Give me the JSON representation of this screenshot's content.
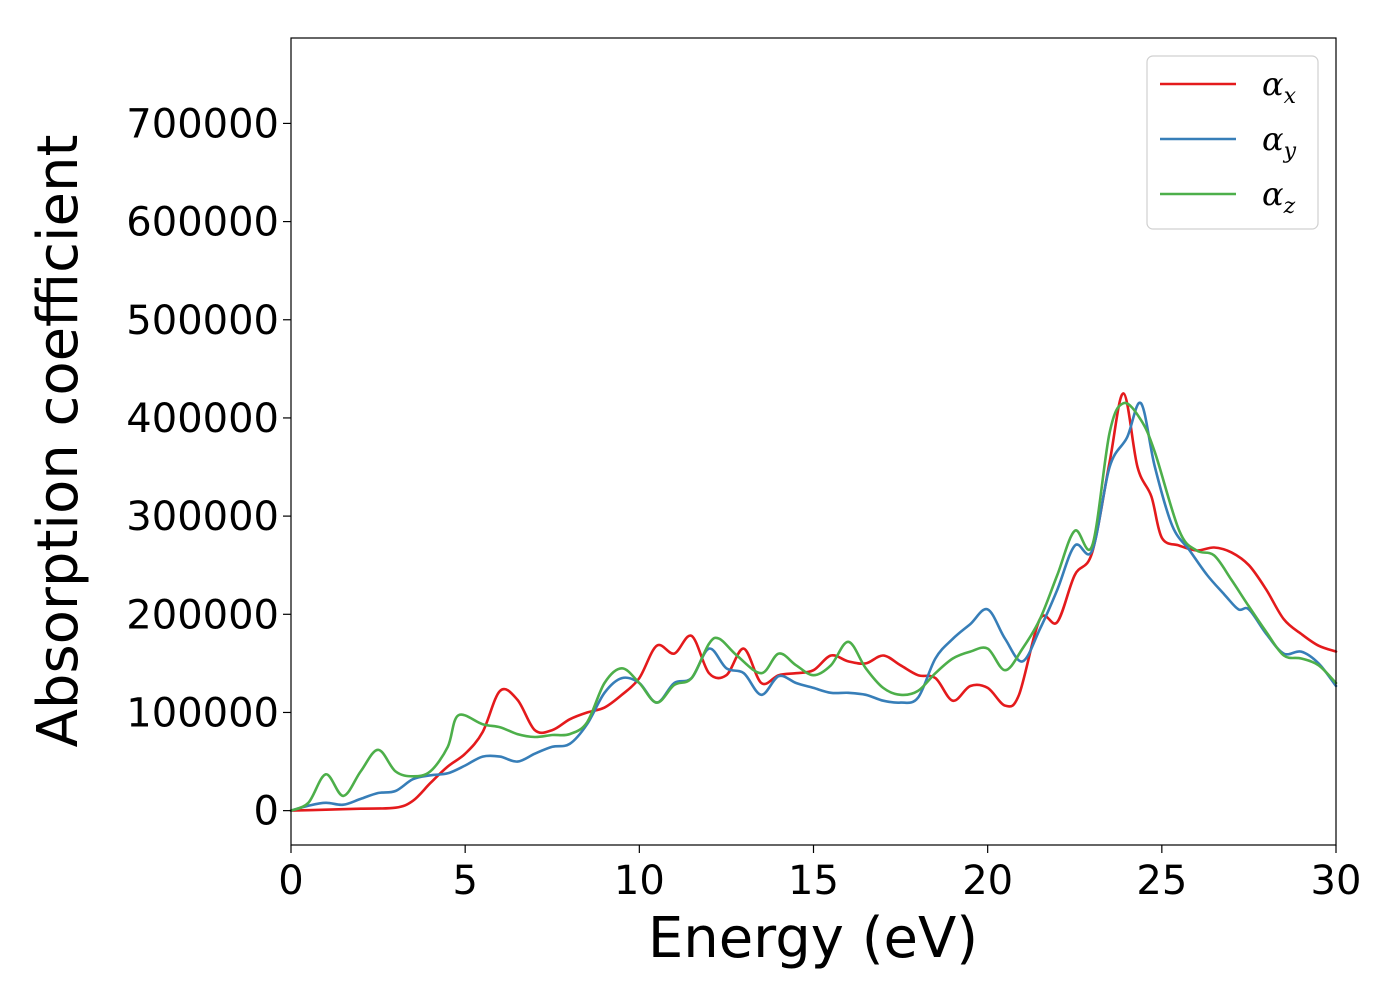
{
  "chart_data": {
    "type": "line",
    "title": "",
    "xlabel": "Energy (eV)",
    "ylabel": "Absorption coefficient",
    "xlim": [
      0,
      30
    ],
    "ylim": [
      -35000,
      787000
    ],
    "xticks": [
      0,
      5,
      10,
      15,
      20,
      25,
      30
    ],
    "yticks": [
      0,
      100000,
      200000,
      300000,
      400000,
      500000,
      600000,
      700000
    ],
    "grid": false,
    "legend_position": "top-right",
    "series": [
      {
        "name": "αx",
        "symbol": "α",
        "subscript": "x",
        "color": "#e41a1c",
        "x": [
          0,
          1,
          2,
          3,
          3.5,
          4,
          4.5,
          5,
          5.5,
          6,
          6.5,
          7,
          7.5,
          8,
          8.5,
          9,
          9.5,
          10,
          10.5,
          11,
          11.5,
          12,
          12.5,
          13,
          13.5,
          14,
          14.5,
          15,
          15.5,
          16,
          16.5,
          17,
          17.5,
          18,
          18.5,
          19,
          19.5,
          20,
          20.5,
          20.9,
          21.5,
          22,
          22.5,
          23,
          23.5,
          23.9,
          24.3,
          24.7,
          25,
          25.5,
          26,
          26.5,
          27,
          27.5,
          28,
          28.5,
          29,
          29.5,
          30
        ],
        "values": [
          0,
          1000,
          2000,
          3000,
          10000,
          28000,
          45000,
          58000,
          80000,
          122000,
          113000,
          82000,
          82000,
          93000,
          100000,
          105000,
          118000,
          135000,
          168000,
          160000,
          178000,
          140000,
          138000,
          165000,
          130000,
          138000,
          140000,
          143000,
          158000,
          152000,
          150000,
          158000,
          148000,
          138000,
          135000,
          112000,
          127000,
          125000,
          107000,
          118000,
          195000,
          192000,
          240000,
          263000,
          355000,
          425000,
          350000,
          320000,
          278000,
          270000,
          265000,
          268000,
          263000,
          250000,
          225000,
          195000,
          180000,
          168000,
          162000
        ]
      },
      {
        "name": "αy",
        "symbol": "α",
        "subscript": "y",
        "color": "#377eb8",
        "x": [
          0,
          0.5,
          1,
          1.5,
          2,
          2.5,
          3,
          3.5,
          4,
          4.5,
          5,
          5.5,
          6,
          6.5,
          7,
          7.5,
          8,
          8.5,
          9,
          9.5,
          10,
          10.5,
          11,
          11.5,
          12,
          12.5,
          13,
          13.5,
          14,
          14.5,
          15,
          15.5,
          16,
          16.5,
          17,
          17.5,
          18,
          18.5,
          19,
          19.5,
          20,
          20.5,
          21,
          21.5,
          22,
          22.5,
          23,
          23.5,
          24,
          24.4,
          24.8,
          25.3,
          25.8,
          26.3,
          26.8,
          27.2,
          27.5,
          28,
          28.5,
          29,
          29.5,
          30
        ],
        "values": [
          0,
          5000,
          8000,
          6000,
          12000,
          18000,
          20000,
          32000,
          36000,
          38000,
          46000,
          55000,
          55000,
          50000,
          58000,
          65000,
          68000,
          88000,
          120000,
          135000,
          130000,
          110000,
          130000,
          135000,
          165000,
          145000,
          140000,
          118000,
          137000,
          130000,
          125000,
          120000,
          120000,
          118000,
          112000,
          110000,
          115000,
          155000,
          175000,
          190000,
          205000,
          175000,
          152000,
          185000,
          225000,
          270000,
          265000,
          350000,
          380000,
          415000,
          350000,
          290000,
          265000,
          240000,
          220000,
          205000,
          205000,
          180000,
          160000,
          162000,
          150000,
          127000
        ]
      },
      {
        "name": "αz",
        "symbol": "α",
        "subscript": "z",
        "color": "#4daf4a",
        "x": [
          0,
          0.5,
          1,
          1.5,
          2,
          2.5,
          3,
          3.5,
          4,
          4.5,
          4.8,
          5.5,
          6,
          6.5,
          7,
          7.5,
          8,
          8.5,
          9,
          9.5,
          10,
          10.5,
          11,
          11.5,
          12,
          12.3,
          12.8,
          13.5,
          14,
          14.5,
          15,
          15.5,
          16,
          16.5,
          17,
          17.5,
          18,
          18.5,
          19,
          19.5,
          20,
          20.5,
          21,
          21.5,
          22,
          22.5,
          23,
          23.5,
          23.9,
          24.4,
          24.8,
          25.5,
          26,
          26.5,
          27,
          27.5,
          28,
          28.5,
          29,
          29.5,
          30
        ],
        "values": [
          0,
          8000,
          37000,
          15000,
          40000,
          62000,
          40000,
          35000,
          40000,
          65000,
          97000,
          88000,
          85000,
          78000,
          75000,
          77000,
          78000,
          90000,
          130000,
          145000,
          130000,
          110000,
          128000,
          135000,
          170000,
          175000,
          158000,
          140000,
          160000,
          148000,
          138000,
          148000,
          172000,
          145000,
          125000,
          118000,
          122000,
          140000,
          155000,
          162000,
          165000,
          143000,
          165000,
          195000,
          240000,
          285000,
          270000,
          385000,
          415000,
          398000,
          365000,
          285000,
          265000,
          260000,
          235000,
          208000,
          182000,
          158000,
          155000,
          148000,
          130000
        ]
      }
    ]
  }
}
